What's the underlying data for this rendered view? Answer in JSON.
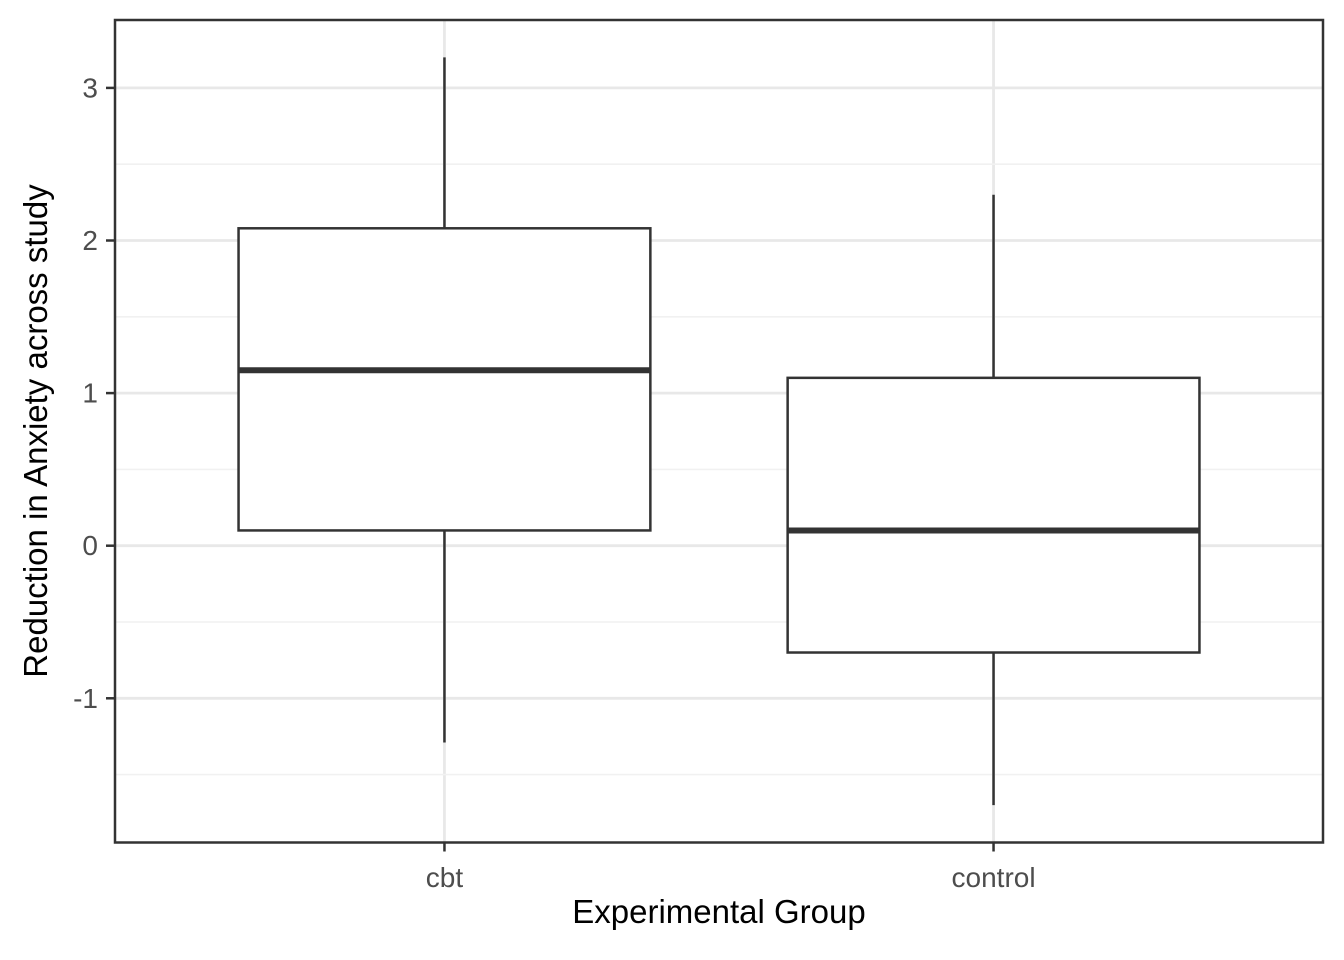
{
  "chart_data": {
    "type": "boxplot",
    "title": "",
    "xlabel": "Experimental Group",
    "ylabel": "Reduction in Anxiety across study",
    "categories": [
      "cbt",
      "control"
    ],
    "series": [
      {
        "name": "cbt",
        "whisker_low": -1.29,
        "q1": 0.1,
        "median": 1.15,
        "q3": 2.08,
        "whisker_high": 3.2
      },
      {
        "name": "control",
        "whisker_low": -1.7,
        "q1": -0.7,
        "median": 0.1,
        "q3": 1.1,
        "whisker_high": 2.3
      }
    ],
    "y_axis": {
      "major_ticks": [
        3,
        2,
        1,
        0,
        -1
      ],
      "minor_ticks": [
        2.5,
        1.5,
        0.5,
        -0.5,
        -1.5
      ],
      "range": [
        -1.945,
        3.445
      ]
    },
    "x_axis": {
      "tick_labels": [
        "cbt",
        "control"
      ]
    },
    "legend": "none",
    "grid": "major+minor",
    "box_width_fraction": 0.75,
    "style": {
      "panel_background": "#ffffff",
      "panel_border_color": "#333333",
      "grid_major_color": "#e8e8e8",
      "grid_minor_color": "#f1f1f1",
      "box_line_color": "#333333",
      "box_fill": "#ffffff",
      "tick_mark_color": "#333333",
      "tick_label_color": "#4d4d4d",
      "axis_title_color": "#000000"
    }
  }
}
